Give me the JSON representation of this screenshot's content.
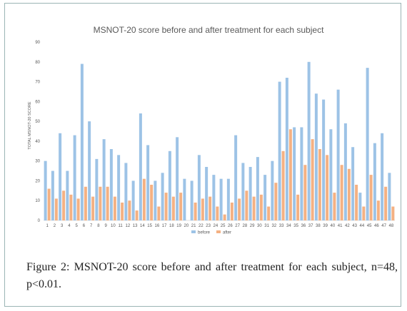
{
  "caption": {
    "label": "Figure 2:",
    "text": " MSNOT-20 score before and after treatment for each subject, n=48, p<0.01."
  },
  "chart_data": {
    "type": "bar",
    "title": "MSNOT-20 score before and after treatment for each subject",
    "xlabel": "",
    "ylabel": "TOTAL MSNOT-20 SCORE",
    "ylim": [
      0,
      90
    ],
    "yticks": [
      0,
      10,
      20,
      30,
      40,
      50,
      60,
      70,
      80,
      90
    ],
    "grid": false,
    "legend_position": "bottom-center",
    "categories": [
      "1",
      "2",
      "3",
      "4",
      "5",
      "6",
      "7",
      "8",
      "9",
      "10",
      "11",
      "12",
      "13",
      "14",
      "15",
      "16",
      "17",
      "18",
      "19",
      "20",
      "21",
      "22",
      "23",
      "24",
      "25",
      "26",
      "27",
      "28",
      "29",
      "30",
      "31",
      "32",
      "33",
      "34",
      "35",
      "36",
      "37",
      "38",
      "39",
      "40",
      "41",
      "42",
      "43",
      "44",
      "45",
      "46",
      "47",
      "48"
    ],
    "series": [
      {
        "name": "before",
        "color": "#9dc3e6",
        "values": [
          30,
          25,
          44,
          25,
          43,
          79,
          50,
          31,
          41,
          36,
          33,
          29,
          20,
          54,
          38,
          20,
          24,
          35,
          42,
          21,
          20,
          33,
          27,
          23,
          21,
          21,
          43,
          29,
          27,
          32,
          23,
          30,
          70,
          72,
          47,
          47,
          80,
          64,
          61,
          46,
          66,
          49,
          37,
          14,
          77,
          39,
          44,
          24
        ]
      },
      {
        "name": "after",
        "color": "#f4b183",
        "values": [
          16,
          11,
          15,
          13,
          11,
          17,
          12,
          17,
          17,
          12,
          9,
          10,
          5,
          21,
          18,
          7,
          14,
          12,
          14,
          0,
          9,
          11,
          12,
          7,
          3,
          9,
          11,
          15,
          12,
          13,
          7,
          19,
          35,
          46,
          13,
          28,
          41,
          36,
          33,
          14,
          28,
          26,
          18,
          7,
          23,
          10,
          17,
          7
        ]
      }
    ]
  }
}
